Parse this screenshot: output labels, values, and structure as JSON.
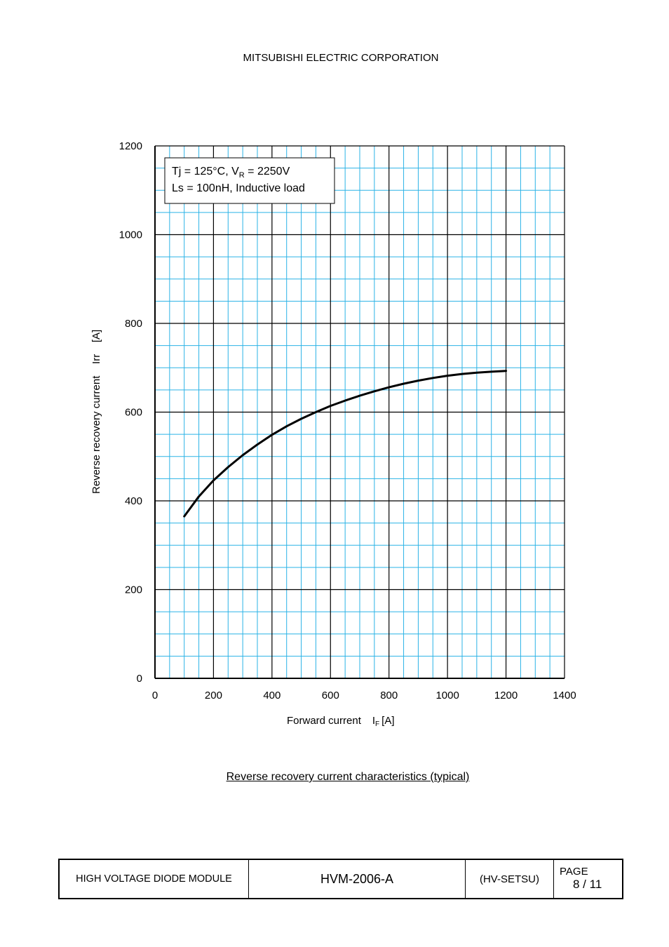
{
  "header": {
    "company": "MITSUBISHI ELECTRIC CORPORATION"
  },
  "chart_data": {
    "type": "line",
    "xlabel_main": "Forward current",
    "xlabel_sym": "I",
    "xlabel_sub": "F",
    "xlabel_unit": "[A]",
    "ylabel": "Reverse recovery current    Irr    [A]",
    "xlim": [
      0,
      1400
    ],
    "ylim": [
      0,
      1200
    ],
    "x_ticks": [
      0,
      200,
      400,
      600,
      800,
      1000,
      1200,
      1400
    ],
    "y_ticks": [
      0,
      200,
      400,
      600,
      800,
      1000,
      1200
    ],
    "x_minor_step": 50,
    "y_minor_step": 50,
    "grid": true,
    "annotation": {
      "line1_prefix": "Tj = 125°C, V",
      "line1_sub": "R",
      "line1_suffix": " = 2250V",
      "line2": "Ls = 100nH, Inductive load"
    },
    "series": [
      {
        "name": "Irr",
        "x": [
          100,
          150,
          200,
          250,
          300,
          350,
          400,
          450,
          500,
          550,
          600,
          650,
          700,
          750,
          800,
          850,
          900,
          950,
          1000,
          1050,
          1100,
          1150,
          1200
        ],
        "y": [
          365,
          410,
          446,
          476,
          503,
          527,
          549,
          568,
          585,
          600,
          614,
          626,
          637,
          647,
          656,
          664,
          671,
          677,
          682,
          686,
          689,
          691,
          693
        ]
      }
    ]
  },
  "caption": "Reverse recovery current characteristics (typical)",
  "footer": {
    "product": "HIGH VOLTAGE DIODE MODULE",
    "doc_no": "HVM-2006-A",
    "type": "(HV-SETSU)",
    "page_label": "PAGE",
    "page_num": "8 / 11"
  }
}
